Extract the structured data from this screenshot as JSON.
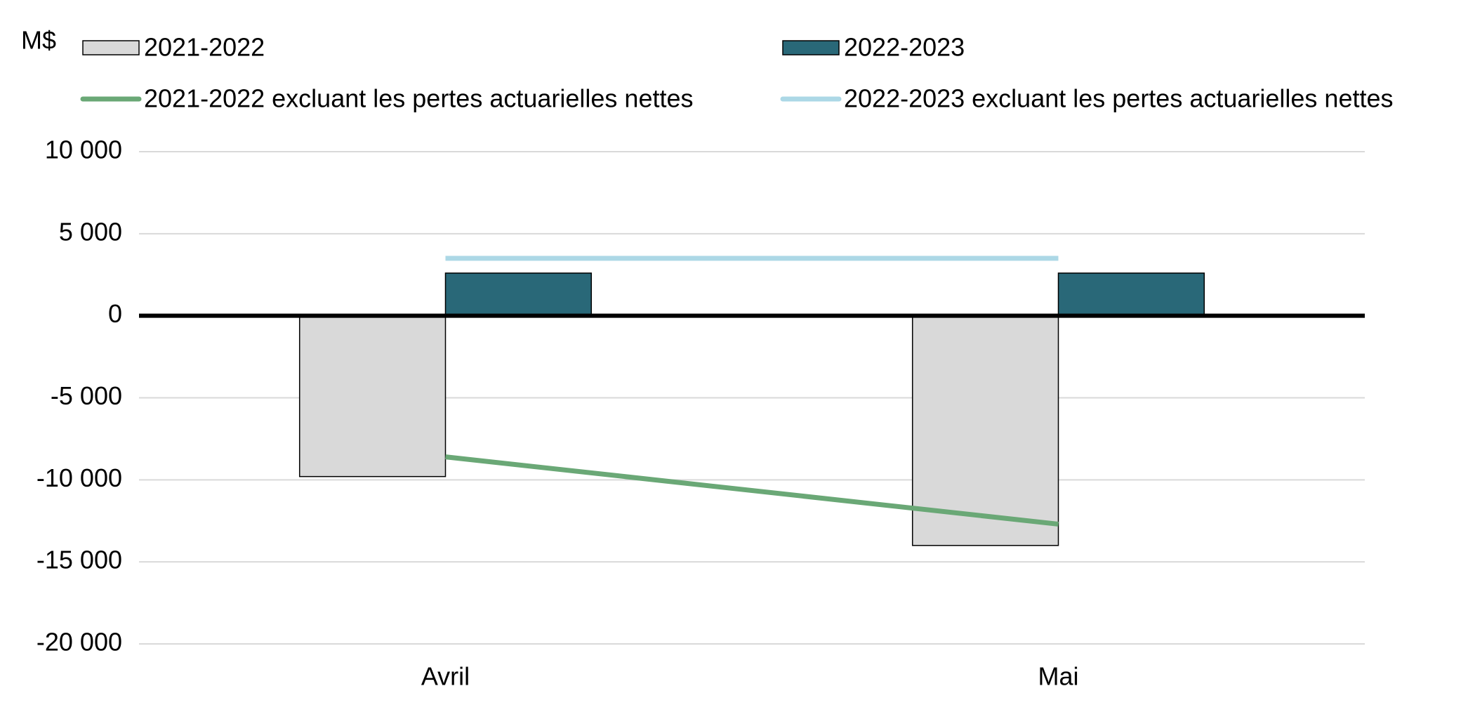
{
  "chart_data": {
    "type": "bar",
    "y_label": "M$",
    "categories": [
      "Avril",
      "Mai"
    ],
    "series": [
      {
        "name": "2021-2022",
        "type": "bar",
        "color": "#d9d9d9",
        "values": [
          -9800,
          -14000
        ]
      },
      {
        "name": "2022-2023",
        "type": "bar",
        "color": "#296878",
        "values": [
          2600,
          2600
        ]
      },
      {
        "name": "2021-2022 excluant les pertes actuarielles nettes",
        "type": "line",
        "color": "#6aa876",
        "values": [
          -8600,
          -12700
        ]
      },
      {
        "name": "2022-2023 excluant les pertes actuarielles nettes",
        "type": "line",
        "color": "#acd8e6",
        "values": [
          3500,
          3500
        ]
      }
    ],
    "ylim": [
      -20000,
      10000
    ],
    "yticks": [
      {
        "value": -20000,
        "label": "-20 000"
      },
      {
        "value": -15000,
        "label": "-15 000"
      },
      {
        "value": -10000,
        "label": "-10 000"
      },
      {
        "value": -5000,
        "label": "-5 000"
      },
      0,
      {
        "value": 5000,
        "label": "5 000"
      },
      {
        "value": 10000,
        "label": "10 000"
      }
    ],
    "grid": true
  }
}
